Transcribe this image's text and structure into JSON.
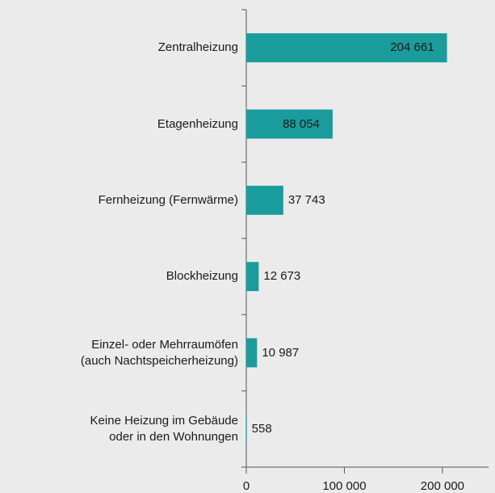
{
  "chart_data": {
    "type": "barh",
    "categories": [
      "Zentralheizung",
      "Etagenheizung",
      "Fernheizung (Fernwärme)",
      "Blockheizung",
      "Einzel- oder Mehrraumöfen\n(auch Nachtspeicherheizung)",
      "Keine Heizung im Gebäude\noder in den Wohnungen"
    ],
    "values": [
      204661,
      88054,
      37743,
      12673,
      10987,
      558
    ],
    "value_labels": [
      "204 661",
      "88 054",
      "37 743",
      "12 673",
      "10 987",
      "558"
    ],
    "color": "#1b9c9c",
    "xlim": [
      0,
      247000
    ],
    "xticks": [
      0,
      {
        "value": 100000,
        "label": "100 000"
      },
      {
        "value": 200000,
        "label": "200 000"
      }
    ],
    "grid": false
  }
}
